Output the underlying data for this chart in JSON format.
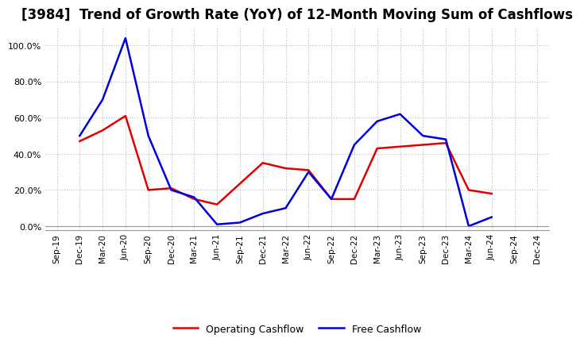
{
  "title": "[3984]  Trend of Growth Rate (YoY) of 12-Month Moving Sum of Cashflows",
  "x_labels": [
    "Sep-19",
    "Dec-19",
    "Mar-20",
    "Jun-20",
    "Sep-20",
    "Dec-20",
    "Mar-21",
    "Jun-21",
    "Sep-21",
    "Dec-21",
    "Mar-22",
    "Jun-22",
    "Sep-22",
    "Dec-22",
    "Mar-23",
    "Jun-23",
    "Sep-23",
    "Dec-23",
    "Mar-24",
    "Jun-24",
    "Sep-24",
    "Dec-24"
  ],
  "operating_cashflow": [
    null,
    0.47,
    0.53,
    0.61,
    0.2,
    0.21,
    0.15,
    0.12,
    null,
    0.35,
    0.32,
    0.31,
    0.15,
    0.15,
    0.43,
    0.44,
    0.45,
    0.46,
    0.2,
    0.18,
    null,
    null
  ],
  "free_cashflow": [
    null,
    0.5,
    0.7,
    1.04,
    0.5,
    0.2,
    0.16,
    0.01,
    0.02,
    0.07,
    0.1,
    0.3,
    0.15,
    0.45,
    0.58,
    0.62,
    0.5,
    0.48,
    0.0,
    0.05,
    null,
    null
  ],
  "operating_color": "#e00000",
  "free_color": "#0000dd",
  "ylim": [
    -0.02,
    1.1
  ],
  "yticks": [
    0.0,
    0.2,
    0.4,
    0.6,
    0.8,
    1.0
  ],
  "background_color": "#ffffff",
  "grid_color": "#bbbbbb",
  "title_fontsize": 12,
  "legend_labels": [
    "Operating Cashflow",
    "Free Cashflow"
  ]
}
